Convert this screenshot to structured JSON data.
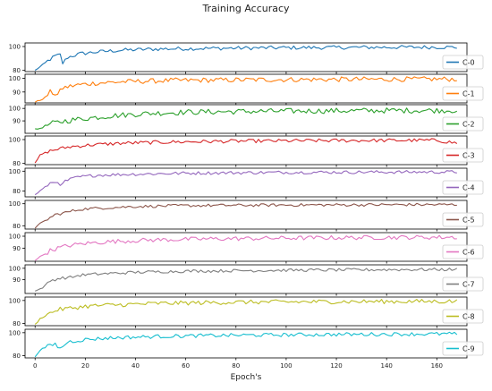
{
  "chart_data": {
    "type": "line",
    "title": "Training Accuracy",
    "xlabel": "Epoch's",
    "ylabel": "",
    "x_ticks": [
      0,
      20,
      40,
      60,
      80,
      100,
      120,
      140,
      160
    ],
    "xlim": [
      -4,
      172
    ],
    "grid": false,
    "legend_placement": "right",
    "panels": [
      {
        "name": "C-0",
        "color": "#1f77b4",
        "ylim": [
          79,
          103
        ],
        "y_ticks": [
          80,
          100
        ],
        "keypoints": [
          [
            0,
            80
          ],
          [
            2,
            83
          ],
          [
            5,
            88
          ],
          [
            8,
            92
          ],
          [
            10,
            93
          ],
          [
            11,
            86
          ],
          [
            13,
            91
          ],
          [
            18,
            94
          ],
          [
            25,
            95.5
          ],
          [
            35,
            97
          ],
          [
            50,
            98
          ],
          [
            70,
            98.5
          ],
          [
            100,
            99
          ],
          [
            130,
            99.3
          ],
          [
            160,
            99.5
          ],
          [
            168,
            99.4
          ]
        ],
        "amplitude": 1.6
      },
      {
        "name": "C-1",
        "color": "#ff7f0e",
        "ylim": [
          82,
          103
        ],
        "y_ticks": [
          90,
          100
        ],
        "keypoints": [
          [
            0,
            82.5
          ],
          [
            2,
            84
          ],
          [
            4,
            86
          ],
          [
            6,
            90
          ],
          [
            9,
            88
          ],
          [
            11,
            93
          ],
          [
            16,
            95
          ],
          [
            24,
            96.5
          ],
          [
            35,
            97.5
          ],
          [
            55,
            98.5
          ],
          [
            90,
            99
          ],
          [
            130,
            99.3
          ],
          [
            168,
            99.5
          ]
        ],
        "amplitude": 1.8
      },
      {
        "name": "C-2",
        "color": "#2ca02c",
        "ylim": [
          80,
          103
        ],
        "y_ticks": [
          90,
          100
        ],
        "keypoints": [
          [
            0,
            83
          ],
          [
            2,
            84
          ],
          [
            4,
            86
          ],
          [
            7,
            88
          ],
          [
            12,
            90
          ],
          [
            20,
            92
          ],
          [
            30,
            94
          ],
          [
            45,
            96
          ],
          [
            60,
            97
          ],
          [
            80,
            97.5
          ],
          [
            110,
            98
          ],
          [
            140,
            98.3
          ],
          [
            168,
            98.5
          ]
        ],
        "amplitude": 2.2
      },
      {
        "name": "C-3",
        "color": "#d62728",
        "ylim": [
          79,
          103
        ],
        "y_ticks": [
          80,
          100
        ],
        "keypoints": [
          [
            0,
            80
          ],
          [
            2,
            87
          ],
          [
            5,
            90
          ],
          [
            9,
            92
          ],
          [
            14,
            94
          ],
          [
            22,
            95.5
          ],
          [
            35,
            97
          ],
          [
            55,
            98
          ],
          [
            80,
            98.7
          ],
          [
            120,
            99.2
          ],
          [
            160,
            99.4
          ],
          [
            168,
            97
          ]
        ],
        "amplitude": 1.5
      },
      {
        "name": "C-4",
        "color": "#9467bd",
        "ylim": [
          74,
          103
        ],
        "y_ticks": [
          80,
          100
        ],
        "keypoints": [
          [
            0,
            76
          ],
          [
            3,
            82
          ],
          [
            6,
            88
          ],
          [
            9,
            90
          ],
          [
            10,
            84
          ],
          [
            12,
            90
          ],
          [
            17,
            94
          ],
          [
            25,
            96
          ],
          [
            40,
            97
          ],
          [
            60,
            98
          ],
          [
            100,
            98.8
          ],
          [
            140,
            99.1
          ],
          [
            168,
            99.2
          ]
        ],
        "amplitude": 1.6
      },
      {
        "name": "C-5",
        "color": "#8c564b",
        "ylim": [
          77,
          103
        ],
        "y_ticks": [
          80,
          100
        ],
        "keypoints": [
          [
            0,
            78
          ],
          [
            2,
            82
          ],
          [
            5,
            86
          ],
          [
            8,
            90
          ],
          [
            12,
            92
          ],
          [
            18,
            95
          ],
          [
            25,
            96
          ],
          [
            40,
            97.5
          ],
          [
            60,
            98.3
          ],
          [
            100,
            98.8
          ],
          [
            140,
            99.1
          ],
          [
            168,
            99.2
          ]
        ],
        "amplitude": 1.3
      },
      {
        "name": "C-6",
        "color": "#e377c2",
        "ylim": [
          79,
          103
        ],
        "y_ticks": [
          90,
          100
        ],
        "keypoints": [
          [
            0,
            80
          ],
          [
            3,
            84
          ],
          [
            6,
            88
          ],
          [
            9,
            90
          ],
          [
            13,
            92
          ],
          [
            20,
            94
          ],
          [
            30,
            95.5
          ],
          [
            45,
            96.8
          ],
          [
            70,
            97.8
          ],
          [
            110,
            98.6
          ],
          [
            140,
            99
          ],
          [
            168,
            99.2
          ]
        ],
        "amplitude": 1.8
      },
      {
        "name": "C-7",
        "color": "#7f7f7f",
        "ylim": [
          78,
          103
        ],
        "y_ticks": [
          90,
          100
        ],
        "keypoints": [
          [
            0,
            80
          ],
          [
            3,
            83
          ],
          [
            6,
            89
          ],
          [
            9,
            91
          ],
          [
            11,
            91.5
          ],
          [
            14,
            92
          ],
          [
            18,
            94
          ],
          [
            25,
            95
          ],
          [
            40,
            96.5
          ],
          [
            60,
            97.5
          ],
          [
            100,
            98.3
          ],
          [
            140,
            98.8
          ],
          [
            168,
            99
          ]
        ],
        "amplitude": 1.3
      },
      {
        "name": "C-8",
        "color": "#bcbd22",
        "ylim": [
          78,
          103
        ],
        "y_ticks": [
          80,
          100
        ],
        "keypoints": [
          [
            0,
            79
          ],
          [
            2,
            84
          ],
          [
            5,
            88
          ],
          [
            9,
            92
          ],
          [
            13,
            93
          ],
          [
            20,
            95
          ],
          [
            30,
            96
          ],
          [
            50,
            97.5
          ],
          [
            80,
            98.5
          ],
          [
            120,
            99
          ],
          [
            168,
            99.3
          ]
        ],
        "amplitude": 1.9
      },
      {
        "name": "C-9",
        "color": "#17becf",
        "ylim": [
          78,
          103
        ],
        "y_ticks": [
          80,
          100
        ],
        "keypoints": [
          [
            0,
            79
          ],
          [
            2,
            85
          ],
          [
            5,
            88
          ],
          [
            8,
            90
          ],
          [
            10,
            86
          ],
          [
            13,
            92
          ],
          [
            20,
            94
          ],
          [
            30,
            95.5
          ],
          [
            50,
            96.8
          ],
          [
            80,
            97.8
          ],
          [
            120,
            98.5
          ],
          [
            168,
            99
          ]
        ],
        "amplitude": 1.6
      }
    ]
  }
}
